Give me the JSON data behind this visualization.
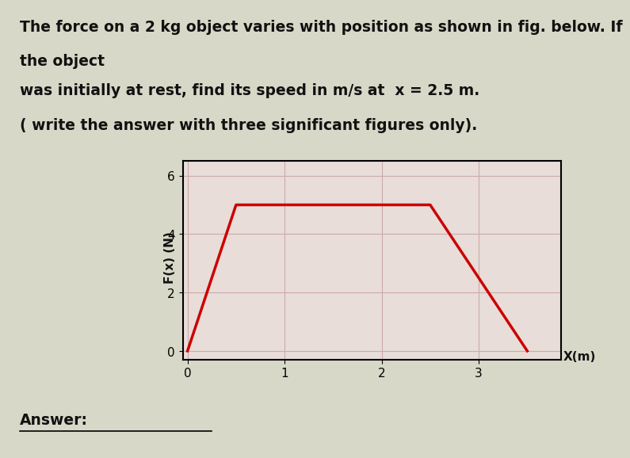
{
  "title_line1": "The force on a 2 kg object varies with position as shown in fig. below. If",
  "title_line2": "the object",
  "title_line3": "was initially at rest, find its speed in m/s at  x = 2.5 m.",
  "title_line4": "( write the answer with three significant figures only).",
  "answer_label": "Answer:",
  "xlabel": "X(m)",
  "ylabel": "F(x) (N)",
  "x_data": [
    0,
    0.5,
    2.5,
    3.5
  ],
  "y_data": [
    0,
    5,
    5,
    0
  ],
  "xlim": [
    -0.05,
    3.85
  ],
  "ylim": [
    -0.3,
    6.5
  ],
  "x_ticks": [
    0,
    1,
    2,
    3
  ],
  "y_ticks": [
    0,
    2,
    4,
    6
  ],
  "line_color": "#cc0000",
  "line_width": 2.5,
  "grid_color": "#ccaaaa",
  "bg_color": "#d8d8c8",
  "plot_bg_color": "#e8ddd8",
  "text_color": "#111111",
  "title_fontsize": 13.5,
  "axis_fontsize": 11,
  "tick_fontsize": 11
}
